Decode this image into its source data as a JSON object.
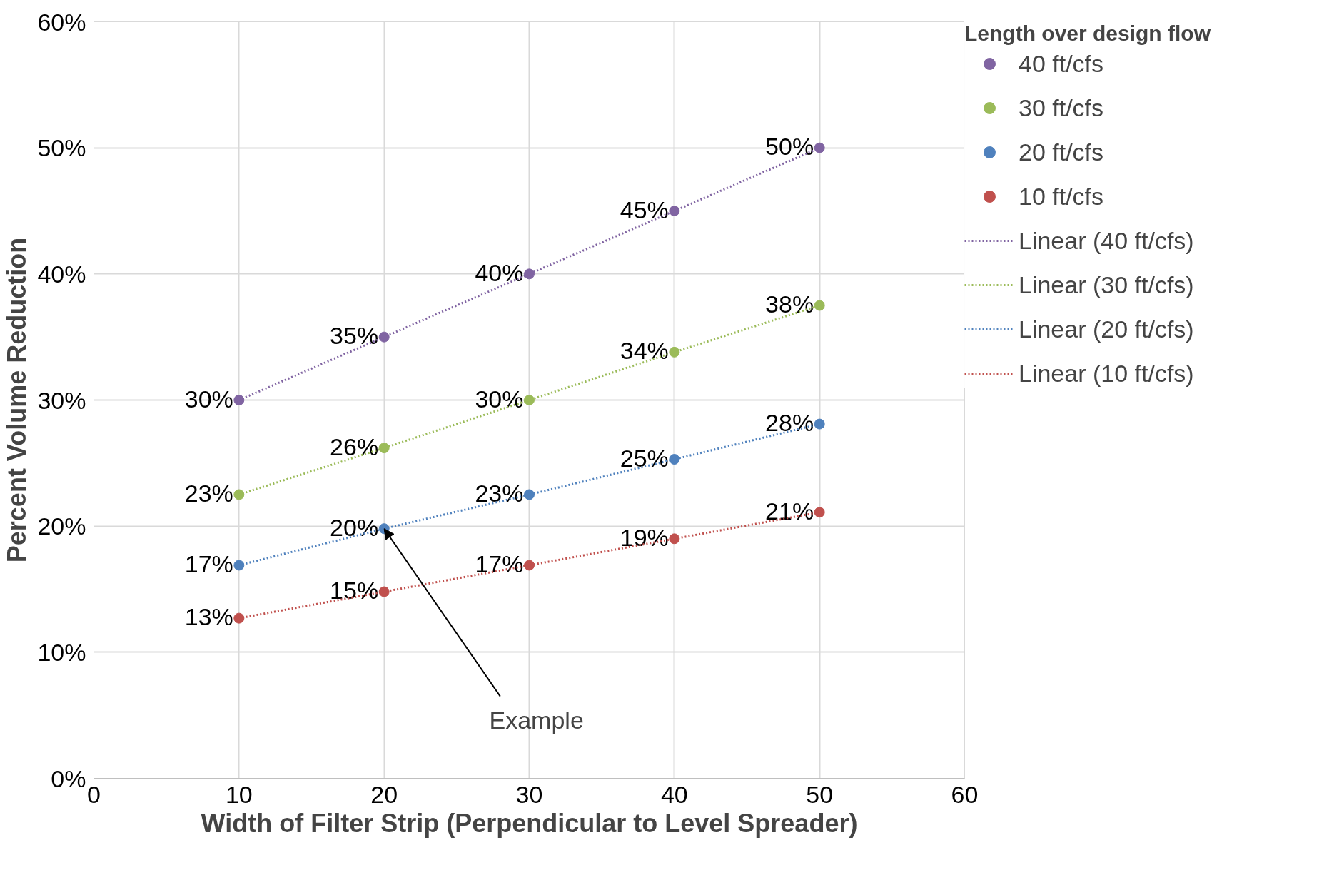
{
  "chart_data": {
    "type": "scatter",
    "xlabel": "Width of Filter Strip (Perpendicular to Level Spreader)",
    "ylabel": "Percent Volume Reduction",
    "legend_title": "Length over design flow",
    "x": [
      10,
      20,
      30,
      40,
      50
    ],
    "xlim": [
      0,
      60
    ],
    "xticks": [
      0,
      10,
      20,
      30,
      40,
      50,
      60
    ],
    "ylim": [
      0,
      60
    ],
    "yticks": [
      {
        "value": 0,
        "label": "0%"
      },
      {
        "value": 10,
        "label": "10%"
      },
      {
        "value": 20,
        "label": "20%"
      },
      {
        "value": 30,
        "label": "30%"
      },
      {
        "value": 40,
        "label": "40%"
      },
      {
        "value": 50,
        "label": "50%"
      },
      {
        "value": 60,
        "label": "60%"
      }
    ],
    "grid": true,
    "legend": "right",
    "marker": "circle",
    "series": [
      {
        "name": "40 ft/cfs",
        "color": "#8064a2",
        "values": [
          30,
          35,
          40,
          45,
          50
        ],
        "value_labels": [
          "30%",
          "35%",
          "40%",
          "45%",
          "50%"
        ]
      },
      {
        "name": "30 ft/cfs",
        "color": "#9bbb59",
        "values": [
          22.5,
          26.2,
          30,
          33.8,
          37.5
        ],
        "value_labels": [
          "23%",
          "26%",
          "30%",
          "34%",
          "38%"
        ]
      },
      {
        "name": "20 ft/cfs",
        "color": "#4f81bd",
        "values": [
          16.9,
          19.8,
          22.5,
          25.3,
          28.1
        ],
        "value_labels": [
          "17%",
          "20%",
          "23%",
          "25%",
          "28%"
        ]
      },
      {
        "name": "10 ft/cfs",
        "color": "#c0504d",
        "values": [
          12.7,
          14.8,
          16.9,
          19.0,
          21.1
        ],
        "value_labels": [
          "13%",
          "15%",
          "17%",
          "19%",
          "21%"
        ]
      },
      {
        "name": "Linear (40 ft/cfs)",
        "type": "line",
        "line_style": "dotted",
        "marker": "none",
        "color": "#8064a2",
        "values": [
          30,
          35,
          40,
          45,
          50
        ]
      },
      {
        "name": "Linear (30 ft/cfs)",
        "type": "line",
        "line_style": "dotted",
        "marker": "none",
        "color": "#9bbb59",
        "values": [
          22.5,
          26.2,
          30,
          33.8,
          37.5
        ]
      },
      {
        "name": "Linear (20 ft/cfs)",
        "type": "line",
        "line_style": "dotted",
        "marker": "none",
        "color": "#4f81bd",
        "values": [
          16.9,
          19.8,
          22.5,
          25.3,
          28.1
        ]
      },
      {
        "name": "Linear (10 ft/cfs)",
        "type": "line",
        "line_style": "dotted",
        "marker": "none",
        "color": "#c0504d",
        "values": [
          12.7,
          14.8,
          16.9,
          19.0,
          21.1
        ]
      }
    ],
    "annotations": [
      {
        "text": "Example",
        "x": 20,
        "y": 19.8
      }
    ]
  }
}
